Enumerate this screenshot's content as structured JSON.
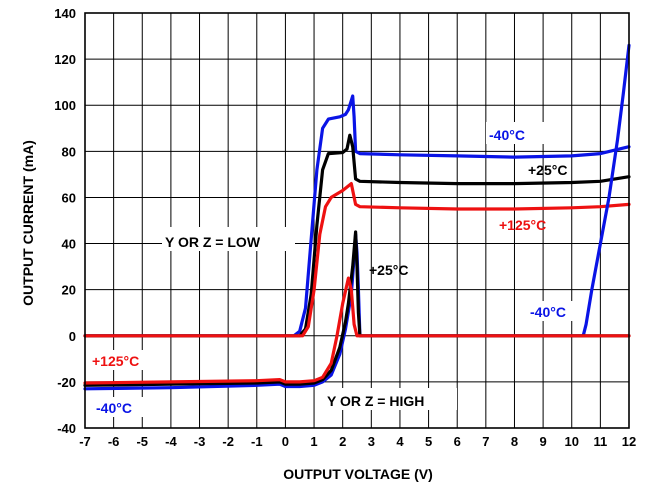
{
  "chart_data": {
    "type": "line",
    "xlabel": "OUTPUT VOLTAGE (V)",
    "ylabel": "OUTPUT CURRENT (mA)",
    "xlim": [
      -7,
      12
    ],
    "ylim": [
      -40,
      140
    ],
    "grid": true,
    "x_ticks": [
      -7,
      -6,
      -5,
      -4,
      -3,
      -2,
      -1,
      0,
      1,
      2,
      3,
      4,
      5,
      6,
      7,
      8,
      9,
      10,
      11,
      12
    ],
    "y_ticks": [
      -40,
      -20,
      0,
      20,
      40,
      60,
      80,
      100,
      120,
      140
    ],
    "series": [
      {
        "name": "-40°C",
        "color": "#0a14e6",
        "points": [
          [
            -7,
            0
          ],
          [
            0.3,
            0
          ],
          [
            0.5,
            2
          ],
          [
            0.7,
            12
          ],
          [
            0.9,
            42
          ],
          [
            1.1,
            72
          ],
          [
            1.3,
            90
          ],
          [
            1.5,
            94
          ],
          [
            1.9,
            95
          ],
          [
            2.1,
            96
          ],
          [
            2.2,
            98
          ],
          [
            2.3,
            102
          ],
          [
            2.35,
            104
          ],
          [
            2.4,
            95
          ],
          [
            2.45,
            80
          ],
          [
            2.6,
            79
          ],
          [
            4,
            78.5
          ],
          [
            6,
            78
          ],
          [
            8,
            77.5
          ],
          [
            10,
            78
          ],
          [
            11,
            79
          ],
          [
            12,
            82
          ]
        ]
      },
      {
        "name": "+25°C",
        "color": "#000000",
        "points": [
          [
            -7,
            0
          ],
          [
            0.5,
            0
          ],
          [
            0.7,
            3
          ],
          [
            0.9,
            18
          ],
          [
            1.1,
            48
          ],
          [
            1.3,
            72
          ],
          [
            1.5,
            79
          ],
          [
            2.0,
            79.5
          ],
          [
            2.15,
            81
          ],
          [
            2.25,
            87
          ],
          [
            2.35,
            82
          ],
          [
            2.45,
            68
          ],
          [
            2.6,
            67
          ],
          [
            4,
            66.5
          ],
          [
            6,
            66
          ],
          [
            8,
            66
          ],
          [
            10,
            66.5
          ],
          [
            11,
            67
          ],
          [
            12,
            69
          ]
        ]
      },
      {
        "name": "+125°C",
        "color": "#ee1111",
        "points": [
          [
            -7,
            0
          ],
          [
            0.6,
            0
          ],
          [
            0.8,
            4
          ],
          [
            1.0,
            20
          ],
          [
            1.2,
            44
          ],
          [
            1.4,
            56
          ],
          [
            1.6,
            60
          ],
          [
            2.0,
            63
          ],
          [
            2.3,
            66
          ],
          [
            2.45,
            57
          ],
          [
            2.6,
            56
          ],
          [
            4,
            55.5
          ],
          [
            6,
            55
          ],
          [
            8,
            55
          ],
          [
            10,
            55.5
          ],
          [
            11,
            56
          ],
          [
            12,
            57
          ]
        ]
      },
      {
        "name": "-40°C",
        "color": "#0a14e6",
        "points": [
          [
            -7,
            -23
          ],
          [
            -4,
            -22.5
          ],
          [
            -1,
            -21.5
          ],
          [
            -0.2,
            -21
          ],
          [
            0,
            -22
          ],
          [
            0.5,
            -22
          ],
          [
            1.0,
            -21.5
          ],
          [
            1.3,
            -20
          ],
          [
            1.6,
            -17
          ],
          [
            1.9,
            -8
          ],
          [
            2.1,
            3
          ],
          [
            2.3,
            18
          ],
          [
            2.4,
            34
          ],
          [
            2.45,
            44
          ],
          [
            2.5,
            36
          ],
          [
            2.55,
            20
          ],
          [
            2.6,
            0
          ],
          [
            10.4,
            0
          ],
          [
            10.5,
            5
          ],
          [
            10.7,
            20
          ],
          [
            11,
            40
          ],
          [
            11.3,
            60
          ],
          [
            11.6,
            85
          ],
          [
            11.8,
            105
          ],
          [
            12,
            126
          ]
        ]
      },
      {
        "name": "+25°C",
        "color": "#000000",
        "points": [
          [
            -7,
            -21.5
          ],
          [
            -4,
            -21
          ],
          [
            -1,
            -20.5
          ],
          [
            -0.2,
            -20
          ],
          [
            0,
            -21
          ],
          [
            0.5,
            -21
          ],
          [
            1.0,
            -20.5
          ],
          [
            1.3,
            -19
          ],
          [
            1.6,
            -15
          ],
          [
            1.9,
            -5
          ],
          [
            2.1,
            6
          ],
          [
            2.2,
            14
          ],
          [
            2.35,
            30
          ],
          [
            2.45,
            45
          ],
          [
            2.5,
            30
          ],
          [
            2.55,
            10
          ],
          [
            2.6,
            0
          ],
          [
            12,
            0
          ]
        ]
      },
      {
        "name": "+125°C",
        "color": "#ee1111",
        "points": [
          [
            -7,
            -20.5
          ],
          [
            -4,
            -20
          ],
          [
            -1,
            -19.5
          ],
          [
            -0.2,
            -19
          ],
          [
            0,
            -20
          ],
          [
            0.5,
            -20
          ],
          [
            1.0,
            -19.5
          ],
          [
            1.3,
            -18
          ],
          [
            1.6,
            -12
          ],
          [
            1.8,
            0
          ],
          [
            2.0,
            14
          ],
          [
            2.2,
            25
          ],
          [
            2.3,
            20
          ],
          [
            2.4,
            5
          ],
          [
            2.5,
            0
          ],
          [
            12,
            0
          ]
        ]
      }
    ],
    "annotations": [
      {
        "text": "-40°C",
        "color": "#0a14e6"
      },
      {
        "text": "+25°C",
        "color": "#000000"
      },
      {
        "text": "+125°C",
        "color": "#ee1111"
      },
      {
        "text": "Y OR Z = LOW",
        "color": "#000000"
      },
      {
        "text": "+25°C",
        "color": "#000000"
      },
      {
        "text": "-40°C",
        "color": "#0a14e6"
      },
      {
        "text": "+125°C",
        "color": "#ee1111"
      },
      {
        "text": "-40°C",
        "color": "#0a14e6"
      },
      {
        "text": "Y OR Z = HIGH",
        "color": "#000000"
      }
    ]
  }
}
